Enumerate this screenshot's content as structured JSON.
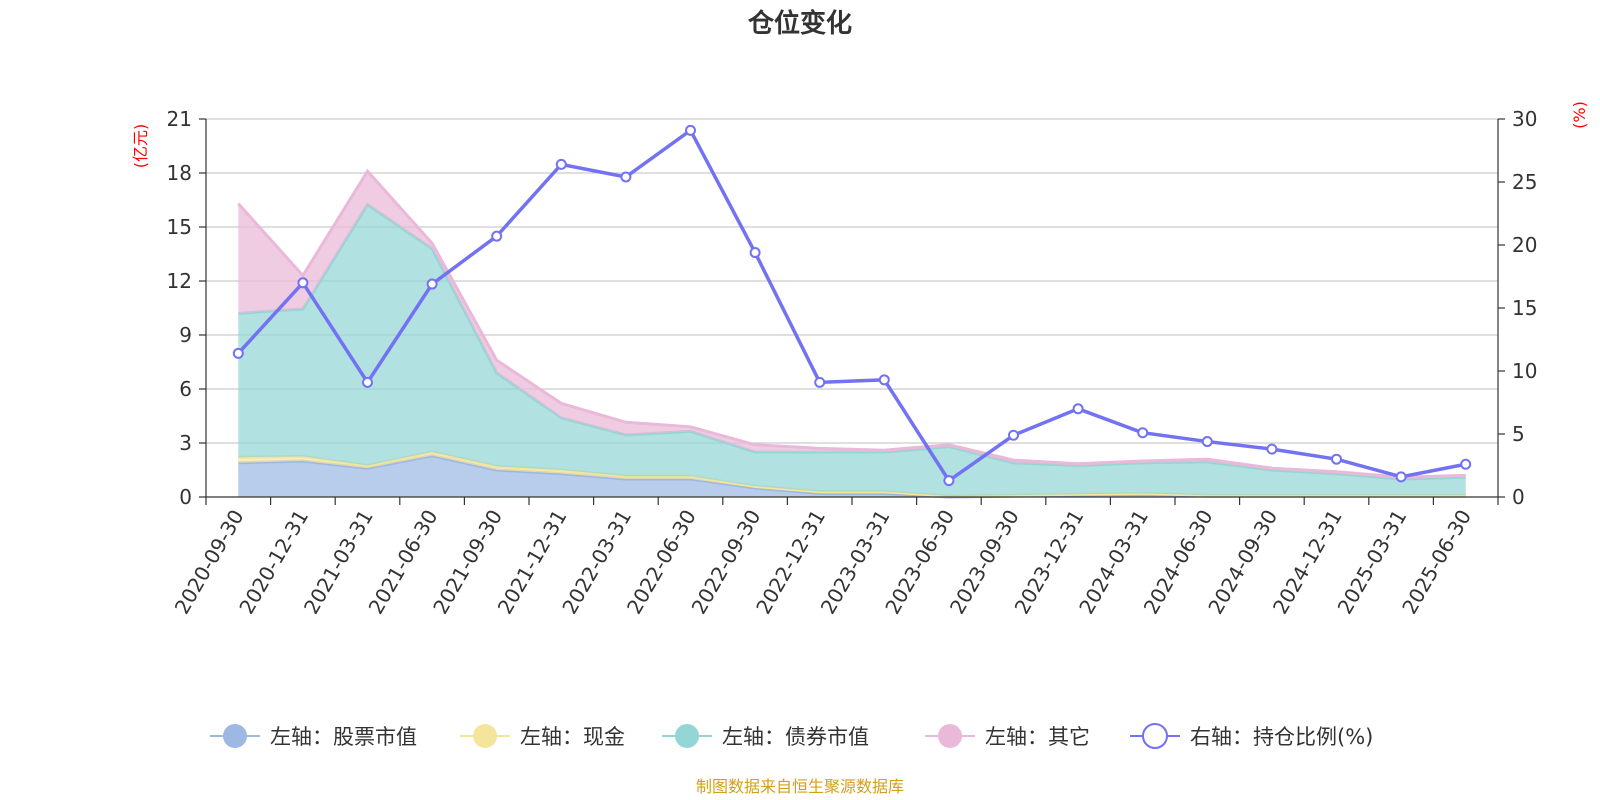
{
  "chart_data": {
    "type": "area",
    "title": "仓位变化",
    "left_axis_unit": "(亿元)",
    "right_axis_unit": "(%)",
    "categories": [
      "2020-09-30",
      "2020-12-31",
      "2021-03-31",
      "2021-06-30",
      "2021-09-30",
      "2021-12-31",
      "2022-03-31",
      "2022-06-30",
      "2022-09-30",
      "2022-12-31",
      "2023-03-31",
      "2023-06-30",
      "2023-09-30",
      "2023-12-31",
      "2024-03-31",
      "2024-06-30",
      "2024-09-30",
      "2024-12-31",
      "2025-03-31",
      "2025-06-30"
    ],
    "left_ylim": [
      0,
      21
    ],
    "left_ticks": [
      0,
      3,
      6,
      9,
      12,
      15,
      18,
      21
    ],
    "right_ylim": [
      0,
      30
    ],
    "right_ticks": [
      0,
      5,
      10,
      15,
      20,
      25,
      30
    ],
    "grid": true,
    "legend_position": "bottom",
    "series": [
      {
        "name": "左轴：股票市值",
        "axis": "left",
        "kind": "area",
        "color": "#9db8e3",
        "values": [
          1.9,
          2.0,
          1.6,
          2.3,
          1.5,
          1.3,
          1.0,
          1.0,
          0.5,
          0.2,
          0.2,
          0.0,
          0.05,
          0.1,
          0.15,
          0.05,
          0.05,
          0.05,
          0.05,
          0.05
        ]
      },
      {
        "name": "左轴：现金",
        "axis": "left",
        "kind": "area",
        "color": "#f5e49c",
        "values": [
          0.3,
          0.25,
          0.15,
          0.2,
          0.2,
          0.2,
          0.15,
          0.15,
          0.1,
          0.1,
          0.1,
          0.05,
          0.05,
          0.05,
          0.05,
          0.05,
          0.05,
          0.05,
          0.05,
          0.05
        ]
      },
      {
        "name": "左轴：债券市值",
        "axis": "left",
        "kind": "area",
        "color": "#93d6d5",
        "values": [
          8.0,
          8.2,
          14.5,
          11.3,
          5.2,
          2.9,
          2.3,
          2.5,
          1.9,
          2.2,
          2.2,
          2.75,
          1.8,
          1.6,
          1.7,
          1.85,
          1.4,
          1.2,
          0.9,
          1.0
        ]
      },
      {
        "name": "左轴：其它",
        "axis": "left",
        "kind": "area",
        "color": "#eab8d8",
        "values": [
          6.1,
          1.85,
          1.85,
          0.3,
          0.7,
          0.8,
          0.7,
          0.25,
          0.4,
          0.2,
          0.1,
          0.1,
          0.15,
          0.1,
          0.1,
          0.15,
          0.1,
          0.1,
          0.1,
          0.1
        ]
      },
      {
        "name": "右轴：持仓比例(%)",
        "axis": "right",
        "kind": "line",
        "color": "#7272f2",
        "values": [
          11.4,
          17.0,
          9.1,
          16.9,
          20.7,
          26.4,
          25.4,
          29.1,
          19.4,
          9.1,
          9.3,
          1.3,
          4.9,
          7.0,
          5.1,
          4.4,
          3.8,
          3.0,
          1.6,
          2.6
        ]
      }
    ]
  },
  "source_note": "制图数据来自恒生聚源数据库"
}
